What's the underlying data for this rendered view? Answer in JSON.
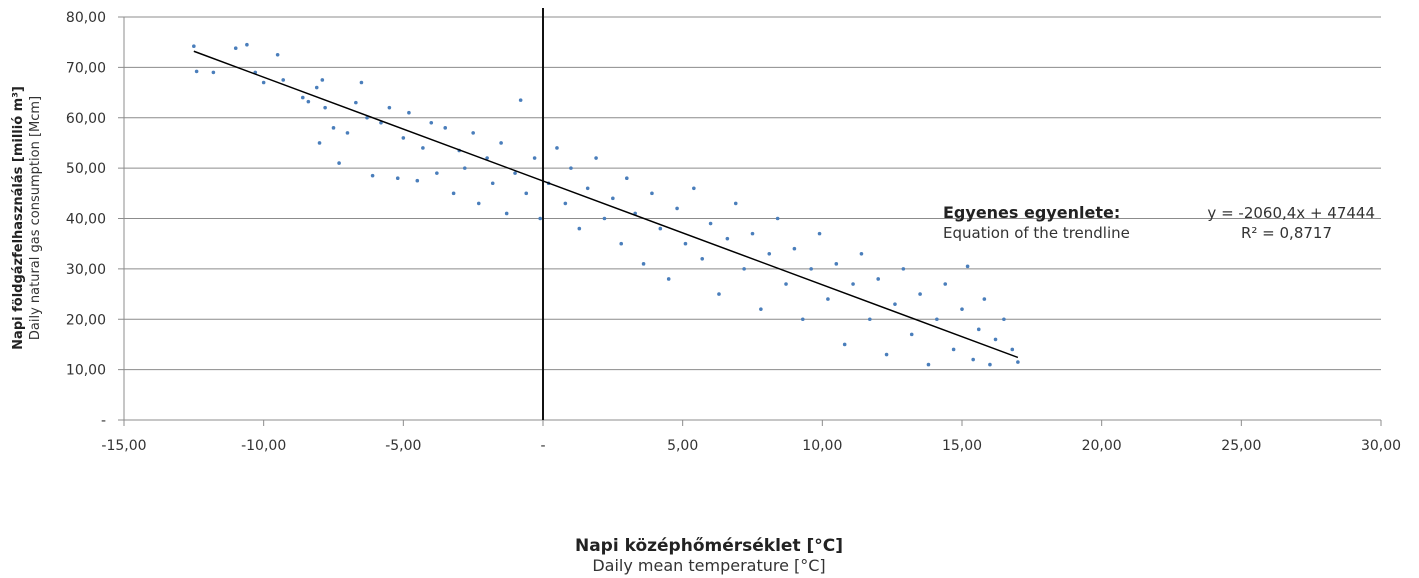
{
  "chart_data": {
    "type": "scatter",
    "xlabel": "Napi középhőmérséklet [°C]",
    "xlabel_sub": "Daily mean temperature [°C]",
    "ylabel": "Napi földgázfelhasználás [millió m³]",
    "ylabel_sub": "Daily natural gas consumption [Mcm]",
    "xlim": [
      -15,
      30
    ],
    "ylim": [
      0,
      80
    ],
    "x_ticks": [
      -15,
      -10,
      -5,
      0,
      5,
      10,
      15,
      20,
      25,
      30
    ],
    "x_tick_labels": [
      "-15,00",
      "-10,00",
      "-5,00",
      "-",
      "5,00",
      "10,00",
      "15,00",
      "20,00",
      "25,00",
      "30,00"
    ],
    "y_ticks": [
      0,
      10,
      20,
      30,
      40,
      50,
      60,
      70,
      80
    ],
    "y_tick_labels": [
      "-",
      "10,00",
      "20,00",
      "30,00",
      "40,00",
      "50,00",
      "60,00",
      "70,00",
      "80,00"
    ],
    "grid": "horizontal",
    "point_color": "#4a7ebb",
    "trendline_color": "#000000",
    "trendline": {
      "slope": -2.0604,
      "intercept": 47.444,
      "x_range": [
        -12.5,
        17.0
      ]
    },
    "annotation": {
      "title": "Egyenes egyenlete:",
      "equation": "y = -2060,4x + 47444",
      "subtitle": "Equation of the trendline",
      "r_squared": "R² = 0,8717"
    },
    "series": [
      {
        "points": [
          [
            -12.5,
            74.2
          ],
          [
            -12.4,
            69.2
          ],
          [
            -11.8,
            69.0
          ],
          [
            -11.0,
            73.8
          ],
          [
            -10.6,
            74.5
          ],
          [
            -10.3,
            69.0
          ],
          [
            -10.0,
            67.0
          ],
          [
            -9.5,
            72.5
          ],
          [
            -9.3,
            67.5
          ],
          [
            -8.6,
            64.0
          ],
          [
            -8.4,
            63.2
          ],
          [
            -8.1,
            66.0
          ],
          [
            -7.9,
            67.5
          ],
          [
            -7.8,
            62.0
          ],
          [
            -8.0,
            55.0
          ],
          [
            -7.5,
            58.0
          ],
          [
            -7.3,
            51.0
          ],
          [
            -7.0,
            57.0
          ],
          [
            -6.7,
            63.0
          ],
          [
            -6.5,
            67.0
          ],
          [
            -6.3,
            60.0
          ],
          [
            -6.1,
            48.5
          ],
          [
            -5.8,
            59.0
          ],
          [
            -5.5,
            62.0
          ],
          [
            -5.2,
            48.0
          ],
          [
            -5.0,
            56.0
          ],
          [
            -4.8,
            61.0
          ],
          [
            -4.5,
            47.5
          ],
          [
            -4.3,
            54.0
          ],
          [
            -4.0,
            59.0
          ],
          [
            -3.8,
            49.0
          ],
          [
            -3.5,
            58.0
          ],
          [
            -3.2,
            45.0
          ],
          [
            -3.0,
            53.5
          ],
          [
            -2.8,
            50.0
          ],
          [
            -2.5,
            57.0
          ],
          [
            -2.3,
            43.0
          ],
          [
            -2.0,
            52.0
          ],
          [
            -1.8,
            47.0
          ],
          [
            -1.5,
            55.0
          ],
          [
            -1.3,
            41.0
          ],
          [
            -1.0,
            49.0
          ],
          [
            -0.8,
            63.5
          ],
          [
            -0.6,
            45.0
          ],
          [
            -0.3,
            52.0
          ],
          [
            -0.1,
            40.0
          ],
          [
            0.2,
            47.0
          ],
          [
            0.5,
            54.0
          ],
          [
            0.8,
            43.0
          ],
          [
            1.0,
            50.0
          ],
          [
            1.3,
            38.0
          ],
          [
            1.6,
            46.0
          ],
          [
            1.9,
            52.0
          ],
          [
            2.2,
            40.0
          ],
          [
            2.5,
            44.0
          ],
          [
            2.8,
            35.0
          ],
          [
            3.0,
            48.0
          ],
          [
            3.3,
            41.0
          ],
          [
            3.6,
            31.0
          ],
          [
            3.9,
            45.0
          ],
          [
            4.2,
            38.0
          ],
          [
            4.5,
            28.0
          ],
          [
            4.8,
            42.0
          ],
          [
            5.1,
            35.0
          ],
          [
            5.4,
            46.0
          ],
          [
            5.7,
            32.0
          ],
          [
            6.0,
            39.0
          ],
          [
            6.3,
            25.0
          ],
          [
            6.6,
            36.0
          ],
          [
            6.9,
            43.0
          ],
          [
            7.2,
            30.0
          ],
          [
            7.5,
            37.0
          ],
          [
            7.8,
            22.0
          ],
          [
            8.1,
            33.0
          ],
          [
            8.4,
            40.0
          ],
          [
            8.7,
            27.0
          ],
          [
            9.0,
            34.0
          ],
          [
            9.3,
            20.0
          ],
          [
            9.6,
            30.0
          ],
          [
            9.9,
            37.0
          ],
          [
            10.2,
            24.0
          ],
          [
            10.5,
            31.0
          ],
          [
            10.8,
            15.0
          ],
          [
            11.1,
            27.0
          ],
          [
            11.4,
            33.0
          ],
          [
            11.7,
            20.0
          ],
          [
            12.0,
            28.0
          ],
          [
            12.3,
            13.0
          ],
          [
            12.6,
            23.0
          ],
          [
            12.9,
            30.0
          ],
          [
            13.2,
            17.0
          ],
          [
            13.5,
            25.0
          ],
          [
            13.8,
            11.0
          ],
          [
            14.1,
            20.0
          ],
          [
            14.4,
            27.0
          ],
          [
            14.7,
            14.0
          ],
          [
            15.0,
            22.0
          ],
          [
            15.2,
            30.5
          ],
          [
            15.4,
            12.0
          ],
          [
            15.6,
            18.0
          ],
          [
            15.8,
            24.0
          ],
          [
            16.0,
            11.0
          ],
          [
            16.2,
            16.0
          ],
          [
            16.5,
            20.0
          ],
          [
            16.8,
            14.0
          ],
          [
            17.0,
            11.5
          ]
        ]
      }
    ]
  }
}
